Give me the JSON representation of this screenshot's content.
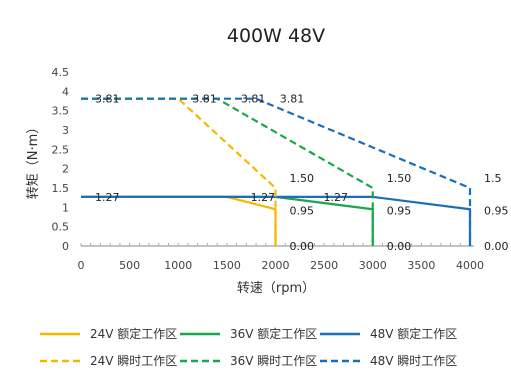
{
  "chart_data": {
    "type": "line",
    "title": "400W 48V",
    "xlabel": "转速（rpm）",
    "ylabel": "转矩（N·m）",
    "xlim": [
      0,
      4000
    ],
    "ylim": [
      0,
      4.5
    ],
    "xticks": [
      "0",
      "500",
      "1000",
      "1500",
      "2000",
      "2500",
      "3000",
      "3500",
      "4000"
    ],
    "yticks": [
      "0",
      "0.5",
      "1",
      "1.5",
      "2",
      "2.5",
      "3",
      "3.5",
      "4",
      "4.5"
    ],
    "xtick_values": [
      0,
      500,
      1000,
      1500,
      2000,
      2500,
      3000,
      3500,
      4000
    ],
    "ytick_values": [
      0,
      0.5,
      1,
      1.5,
      2,
      2.5,
      3,
      3.5,
      4,
      4.5
    ],
    "grid": false,
    "legend_position": "bottom",
    "series": [
      {
        "name": "24V 额定工作区",
        "color": "#F5B800",
        "dashed": false,
        "points": [
          [
            0,
            1.27
          ],
          [
            1500,
            1.27
          ],
          [
            2000,
            0.95
          ],
          [
            2000,
            0
          ]
        ]
      },
      {
        "name": "36V 额定工作区",
        "color": "#1AA64A",
        "dashed": false,
        "points": [
          [
            0,
            1.27
          ],
          [
            2000,
            1.27
          ],
          [
            3000,
            0.95
          ],
          [
            3000,
            0
          ]
        ]
      },
      {
        "name": "48V 额定工作区",
        "color": "#1A6FB8",
        "dashed": false,
        "points": [
          [
            0,
            1.27
          ],
          [
            3000,
            1.27
          ],
          [
            4000,
            0.95
          ],
          [
            4000,
            0
          ]
        ]
      },
      {
        "name": "24V 瞬时工作区",
        "color": "#F5B800",
        "dashed": true,
        "points": [
          [
            0,
            3.81
          ],
          [
            1000,
            3.81
          ],
          [
            2000,
            1.5
          ],
          [
            2000,
            0
          ]
        ]
      },
      {
        "name": "36V 瞬时工作区",
        "color": "#1AA64A",
        "dashed": true,
        "points": [
          [
            0,
            3.81
          ],
          [
            1400,
            3.81
          ],
          [
            3000,
            1.5
          ],
          [
            3000,
            0
          ]
        ]
      },
      {
        "name": "48V 瞬时工作区",
        "color": "#1A6FB8",
        "dashed": true,
        "points": [
          [
            0,
            3.81
          ],
          [
            1800,
            3.81
          ],
          [
            4000,
            1.5
          ],
          [
            4000,
            0
          ]
        ]
      }
    ],
    "data_labels": [
      {
        "text": "3.81",
        "x": 0,
        "y": 3.81
      },
      {
        "text": "3.81",
        "x": 1000,
        "y": 3.81
      },
      {
        "text": "3.81",
        "x": 1500,
        "y": 3.81
      },
      {
        "text": "3.81",
        "x": 1900,
        "y": 3.81
      },
      {
        "text": "1.27",
        "x": 0,
        "y": 1.27
      },
      {
        "text": "1.27",
        "x": 1600,
        "y": 1.27
      },
      {
        "text": "1.27",
        "x": 2350,
        "y": 1.27
      },
      {
        "text": "1.50",
        "x": 2000,
        "y": 1.5
      },
      {
        "text": "1.50",
        "x": 3000,
        "y": 1.5
      },
      {
        "text": "1.5",
        "x": 4000,
        "y": 1.5
      },
      {
        "text": "0.95",
        "x": 2000,
        "y": 0.95
      },
      {
        "text": "0.95",
        "x": 3000,
        "y": 0.95
      },
      {
        "text": "0.95",
        "x": 4000,
        "y": 0.95
      },
      {
        "text": "0.00",
        "x": 2000,
        "y": 0
      },
      {
        "text": "0.00",
        "x": 3000,
        "y": 0
      },
      {
        "text": "0.00",
        "x": 4000,
        "y": 0
      }
    ]
  }
}
